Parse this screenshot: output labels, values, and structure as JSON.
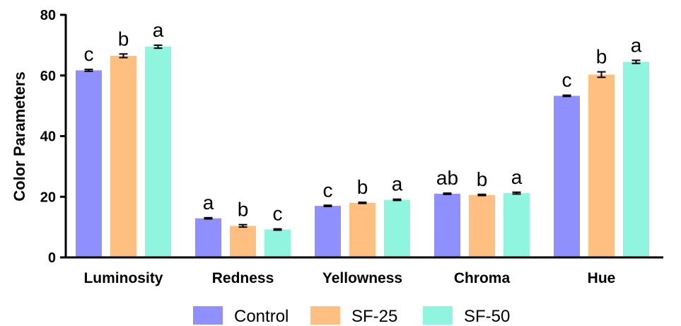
{
  "chart_data": {
    "type": "bar",
    "ylabel": "Color Parameters",
    "xlabel": "",
    "ylim": [
      0,
      80
    ],
    "yticks": [
      0,
      20,
      40,
      60,
      80
    ],
    "grid": false,
    "legend_position": "bottom",
    "categories": [
      "Luminosity",
      "Redness",
      "Yellowness",
      "Chroma",
      "Hue"
    ],
    "series": [
      {
        "name": "Control",
        "color": "#8f8ffd",
        "values": [
          61.7,
          12.9,
          17.0,
          21.0,
          53.3
        ],
        "errors": [
          0.3,
          0.2,
          0.2,
          0.2,
          0.2
        ],
        "labels": [
          "c",
          "a",
          "c",
          "ab",
          "c"
        ]
      },
      {
        "name": "SF-25",
        "color": "#ffbf80",
        "values": [
          66.5,
          10.4,
          18.0,
          20.6,
          60.3
        ],
        "errors": [
          0.6,
          0.4,
          0.2,
          0.2,
          0.9
        ],
        "labels": [
          "b",
          "b",
          "b",
          "b",
          "b"
        ]
      },
      {
        "name": "SF-50",
        "color": "#8ff5df",
        "values": [
          69.5,
          9.2,
          19.0,
          21.2,
          64.5
        ],
        "errors": [
          0.5,
          0.2,
          0.2,
          0.3,
          0.5
        ],
        "labels": [
          "a",
          "c",
          "a",
          "a",
          "a"
        ]
      }
    ]
  }
}
